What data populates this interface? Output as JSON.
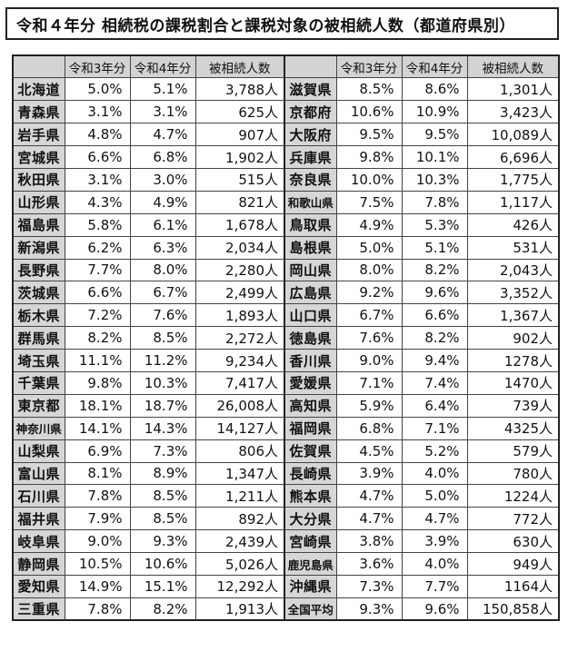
{
  "title": "令和４年分 相続税の課税割合と課税対象の被相続人数（都道府県別）",
  "headers": {
    "left": [
      "",
      "令和3年分",
      "令和4年分",
      "被相続人数"
    ],
    "right": [
      "",
      "令和3年分",
      "令和4年分",
      "被相続人数"
    ]
  },
  "rows": [
    {
      "left": [
        "北海道",
        "5.0%",
        "5.1%",
        "3,788人"
      ],
      "right": [
        "滋賀県",
        "8.5%",
        "8.6%",
        "1,301人"
      ]
    },
    {
      "left": [
        "青森県",
        "3.1%",
        "3.1%",
        "625人"
      ],
      "right": [
        "京都府",
        "10.6%",
        "10.9%",
        "3,423人"
      ]
    },
    {
      "left": [
        "岩手県",
        "4.8%",
        "4.7%",
        "907人"
      ],
      "right": [
        "大阪府",
        "9.5%",
        "9.5%",
        "10,089人"
      ]
    },
    {
      "left": [
        "宮城県",
        "6.6%",
        "6.8%",
        "1,902人"
      ],
      "right": [
        "兵庫県",
        "9.8%",
        "10.1%",
        "6,696人"
      ]
    },
    {
      "left": [
        "秋田県",
        "3.1%",
        "3.0%",
        "515人"
      ],
      "right": [
        "奈良県",
        "10.0%",
        "10.3%",
        "1,775人"
      ]
    },
    {
      "left": [
        "山形県",
        "4.3%",
        "4.9%",
        "821人"
      ],
      "right": [
        "和歌山県",
        "7.5%",
        "7.8%",
        "1,117人"
      ]
    },
    {
      "left": [
        "福島県",
        "5.8%",
        "6.1%",
        "1,678人"
      ],
      "right": [
        "鳥取県",
        "4.9%",
        "5.3%",
        "426人"
      ]
    },
    {
      "left": [
        "新潟県",
        "6.2%",
        "6.3%",
        "2,034人"
      ],
      "right": [
        "島根県",
        "5.0%",
        "5.1%",
        "531人"
      ]
    },
    {
      "left": [
        "長野県",
        "7.7%",
        "8.0%",
        "2,280人"
      ],
      "right": [
        "岡山県",
        "8.0%",
        "8.2%",
        "2,043人"
      ]
    },
    {
      "left": [
        "茨城県",
        "6.6%",
        "6.7%",
        "2,499人"
      ],
      "right": [
        "広島県",
        "9.2%",
        "9.6%",
        "3,352人"
      ]
    },
    {
      "left": [
        "栃木県",
        "7.2%",
        "7.6%",
        "1,893人"
      ],
      "right": [
        "山口県",
        "6.7%",
        "6.6%",
        "1,367人"
      ]
    },
    {
      "left": [
        "群馬県",
        "8.2%",
        "8.5%",
        "2,272人"
      ],
      "right": [
        "徳島県",
        "7.6%",
        "8.2%",
        "902人"
      ]
    },
    {
      "left": [
        "埼玉県",
        "11.1%",
        "11.2%",
        "9,234人"
      ],
      "right": [
        "香川県",
        "9.0%",
        "9.4%",
        "1278人"
      ]
    },
    {
      "left": [
        "千葉県",
        "9.8%",
        "10.3%",
        "7,417人"
      ],
      "right": [
        "愛媛県",
        "7.1%",
        "7.4%",
        "1470人"
      ]
    },
    {
      "left": [
        "東京都",
        "18.1%",
        "18.7%",
        "26,008人"
      ],
      "right": [
        "高知県",
        "5.9%",
        "6.4%",
        "739人"
      ]
    },
    {
      "left": [
        "神奈川県",
        "14.1%",
        "14.3%",
        "14,127人"
      ],
      "right": [
        "福岡県",
        "6.8%",
        "7.1%",
        "4325人"
      ]
    },
    {
      "left": [
        "山梨県",
        "6.9%",
        "7.3%",
        "806人"
      ],
      "right": [
        "佐賀県",
        "4.5%",
        "5.2%",
        "579人"
      ]
    },
    {
      "left": [
        "富山県",
        "8.1%",
        "8.9%",
        "1,347人"
      ],
      "right": [
        "長崎県",
        "3.9%",
        "4.0%",
        "780人"
      ]
    },
    {
      "left": [
        "石川県",
        "7.8%",
        "8.5%",
        "1,211人"
      ],
      "right": [
        "熊本県",
        "4.7%",
        "5.0%",
        "1224人"
      ]
    },
    {
      "left": [
        "福井県",
        "7.9%",
        "8.5%",
        "892人"
      ],
      "right": [
        "大分県",
        "4.7%",
        "4.7%",
        "772人"
      ]
    },
    {
      "left": [
        "岐阜県",
        "9.0%",
        "9.3%",
        "2,439人"
      ],
      "right": [
        "宮崎県",
        "3.8%",
        "3.9%",
        "630人"
      ]
    },
    {
      "left": [
        "静岡県",
        "10.5%",
        "10.6%",
        "5,026人"
      ],
      "right": [
        "鹿児島県",
        "3.6%",
        "4.0%",
        "949人"
      ]
    },
    {
      "left": [
        "愛知県",
        "14.9%",
        "15.1%",
        "12,292人"
      ],
      "right": [
        "沖縄県",
        "7.3%",
        "7.7%",
        "1164人"
      ]
    },
    {
      "left": [
        "三重県",
        "7.8%",
        "8.2%",
        "1,913人"
      ],
      "right": [
        "全国平均",
        "9.3%",
        "9.6%",
        "150,858人"
      ]
    }
  ]
}
